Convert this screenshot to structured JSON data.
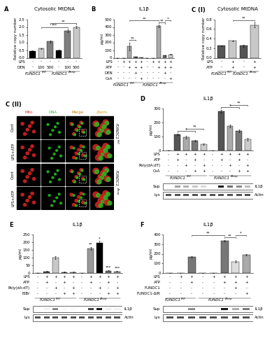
{
  "chart_data": [
    {
      "type": "bar",
      "panel": "A",
      "title": "Cytosolic MtDNA",
      "ylabel": "Relative copy number",
      "categories": [
        null,
        null,
        null,
        null,
        null,
        null
      ],
      "values": [
        0.45,
        0.6,
        1.05,
        0.5,
        1.75,
        2.0
      ],
      "errors": [
        0.03,
        0.03,
        0.05,
        0.03,
        0.08,
        0.08
      ],
      "colors": [
        "#000000",
        "#c8c8c8",
        "#7f7f7f",
        "#000000",
        "#7f7f7f",
        "#c8c8c8"
      ],
      "ylim": [
        0,
        2.5
      ],
      "yticks": [
        {
          "value": 0,
          "label": "0.0"
        },
        {
          "value": 0.5,
          "label": "0.5"
        },
        {
          "value": 1,
          "label": "1.0"
        },
        {
          "value": 1.5,
          "label": "1.5"
        },
        {
          "value": 2,
          "label": "2.0"
        },
        {
          "value": 2.5,
          "label": "2.5"
        }
      ],
      "tick_labels": "y",
      "conditions": [
        {
          "label": "LPS",
          "marks": [
            "-",
            "-",
            "-",
            "-",
            "-",
            "-"
          ]
        },
        {
          "label": "DEN",
          "marks": [
            "-",
            "100",
            "500",
            "-",
            "100",
            "500"
          ]
        }
      ],
      "groups": [
        {
          "gene": "FUNDC1",
          "sup": "fl/fl"
        },
        {
          "gene": "FUNDC1",
          "sup": "fl/fl"
        },
        {
          "gene": "FUNDC1",
          "sup": "fl/fl"
        },
        {
          "gene": "FUNDC1",
          "sup": "Δhep"
        },
        {
          "gene": "FUNDC1",
          "sup": "Δhep"
        },
        {
          "gene": "FUNDC1",
          "sup": "Δhep"
        }
      ],
      "significance": [
        {
          "from": 1,
          "to": 4,
          "label": "***"
        },
        {
          "from": 2,
          "to": 5,
          "label": "**"
        }
      ]
    },
    {
      "type": "bar",
      "panel": "B",
      "title": "IL1β",
      "ylabel": "pg/ml",
      "categories": [
        null,
        null,
        null,
        null,
        null,
        null,
        null,
        null,
        null,
        null
      ],
      "values": [
        0,
        0,
        150,
        10,
        5,
        0,
        0,
        410,
        30,
        45
      ],
      "errors": [
        0,
        0,
        50,
        3,
        2,
        0,
        0,
        15,
        5,
        8
      ],
      "colors": [
        "#000000",
        "#555555",
        "#aaaaaa",
        "#777777",
        "#cccccc",
        "#000000",
        "#555555",
        "#aaaaaa",
        "#777777",
        "#cccccc"
      ],
      "ylim": [
        0,
        500
      ],
      "yticks": [
        0,
        100,
        200,
        300,
        400,
        500
      ],
      "tick_labels": "y",
      "conditions": [
        {
          "label": "LPS",
          "marks": [
            "-",
            "+",
            "+",
            "+",
            "+",
            "-",
            "+",
            "+",
            "+",
            "+"
          ]
        },
        {
          "label": "ATP",
          "marks": [
            "-",
            "-",
            "+",
            "+",
            "+",
            "-",
            "-",
            "+",
            "+",
            "+"
          ]
        },
        {
          "label": "DEN",
          "marks": [
            "-",
            "-",
            "-",
            "+",
            "-",
            "-",
            "-",
            "-",
            "+",
            "-"
          ]
        },
        {
          "label": "CsA",
          "marks": [
            "-",
            "-",
            "-",
            "-",
            "+",
            "-",
            "-",
            "-",
            "-",
            "+"
          ]
        }
      ],
      "groups": [
        {
          "gene": "FUNDC1",
          "sup": "fl/fl"
        },
        {
          "gene": "FUNDC1",
          "sup": "fl/fl"
        },
        {
          "gene": "FUNDC1",
          "sup": "fl/fl"
        },
        {
          "gene": "FUNDC1",
          "sup": "fl/fl"
        },
        {
          "gene": "FUNDC1",
          "sup": "fl/fl"
        },
        {
          "gene": "FUNDC1",
          "sup": "Δhep"
        },
        {
          "gene": "FUNDC1",
          "sup": "Δhep"
        },
        {
          "gene": "FUNDC1",
          "sup": "Δhep"
        },
        {
          "gene": "FUNDC1",
          "sup": "Δhep"
        },
        {
          "gene": "FUNDC1",
          "sup": "Δhep"
        }
      ],
      "significance": [
        {
          "from": 2,
          "to": 3,
          "label": "**"
        },
        {
          "from": 7,
          "to": 8,
          "label": "**"
        },
        {
          "from": 8,
          "to": 9,
          "label": "*"
        },
        {
          "from": 2,
          "to": 7,
          "label": "**"
        }
      ]
    },
    {
      "type": "bar",
      "panel": "C (I)",
      "title": "Cytosolic MtDNA",
      "ylabel": "Relative copy number",
      "categories": [
        null,
        null,
        null,
        null
      ],
      "values": [
        0.25,
        0.35,
        0.25,
        0.68
      ],
      "errors": [
        0.01,
        0.01,
        0.02,
        0.05
      ],
      "colors": [
        "#555555",
        "#c8c8c8",
        "#555555",
        "#c8c8c8"
      ],
      "ylim": [
        0,
        0.8
      ],
      "yticks": [
        {
          "value": 0,
          "label": "0.0"
        },
        {
          "value": 0.2,
          "label": "0.2"
        },
        {
          "value": 0.4,
          "label": "0.4"
        },
        {
          "value": 0.6,
          "label": "0.6"
        },
        {
          "value": 0.8,
          "label": "0.8"
        }
      ],
      "tick_labels": "y",
      "conditions": [
        {
          "label": "LPS",
          "marks": [
            "-",
            "+",
            "-",
            "+"
          ]
        },
        {
          "label": "ATP",
          "marks": [
            "-",
            "+",
            "-",
            "+"
          ]
        }
      ],
      "groups": [
        {
          "gene": "FUNDC1",
          "sup": "fl/fl"
        },
        {
          "gene": "FUNDC1",
          "sup": "fl/fl"
        },
        {
          "gene": "FUNDC1",
          "sup": "Δhep"
        },
        {
          "gene": "FUNDC1",
          "sup": "Δhep"
        }
      ],
      "significance": [
        {
          "from": 1,
          "to": 3,
          "label": "**"
        }
      ]
    },
    {
      "type": "bar",
      "panel": "D",
      "title": "IL1β",
      "ylabel": "pg/ml",
      "categories": [
        null,
        null,
        null,
        null,
        null,
        null,
        null,
        null,
        null,
        null
      ],
      "values": [
        0,
        115,
        95,
        70,
        45,
        0,
        280,
        175,
        140,
        80
      ],
      "errors": [
        0,
        5,
        8,
        6,
        5,
        0,
        10,
        12,
        10,
        8
      ],
      "colors": [
        "#000000",
        "#555555",
        "#aaaaaa",
        "#777777",
        "#cccccc",
        "#000000",
        "#555555",
        "#aaaaaa",
        "#777777",
        "#cccccc"
      ],
      "ylim": [
        0,
        300
      ],
      "yticks": [
        0,
        100,
        200,
        300
      ],
      "tick_labels": "y",
      "conditions": [
        {
          "label": "LPS",
          "marks": [
            "-",
            "+",
            "+",
            "+",
            "+",
            "-",
            "+",
            "+",
            "+",
            "+"
          ]
        },
        {
          "label": "ATP",
          "marks": [
            "-",
            "+",
            "-",
            "+",
            "-",
            "-",
            "+",
            "-",
            "+",
            "-"
          ]
        },
        {
          "label": "Poly(dA:dT)",
          "marks": [
            "-",
            "-",
            "+",
            "-",
            "+",
            "-",
            "-",
            "+",
            "-",
            "+"
          ]
        },
        {
          "label": "CsA",
          "marks": [
            "-",
            "-",
            "-",
            "+",
            "+",
            "-",
            "-",
            "-",
            "+",
            "+"
          ]
        }
      ],
      "groups": [
        {
          "gene": "FUNDC1",
          "sup": "fl/fl"
        },
        {
          "gene": "FUNDC1",
          "sup": "fl/fl"
        },
        {
          "gene": "FUNDC1",
          "sup": "fl/fl"
        },
        {
          "gene": "FUNDC1",
          "sup": "fl/fl"
        },
        {
          "gene": "FUNDC1",
          "sup": "fl/fl"
        },
        {
          "gene": "FUNDC1",
          "sup": "Δhep"
        },
        {
          "gene": "FUNDC1",
          "sup": "Δhep"
        },
        {
          "gene": "FUNDC1",
          "sup": "Δhep"
        },
        {
          "gene": "FUNDC1",
          "sup": "Δhep"
        },
        {
          "gene": "FUNDC1",
          "sup": "Δhep"
        }
      ],
      "significance": [
        {
          "from": 1,
          "to": 3,
          "label": "*"
        },
        {
          "from": 2,
          "to": 4,
          "label": "**"
        },
        {
          "from": 6,
          "to": 8,
          "label": "*"
        },
        {
          "from": 7,
          "to": 9,
          "label": "**"
        }
      ],
      "blot": [
        {
          "fraction": "Sup",
          "protein": "IL1β"
        },
        {
          "fraction": "Lys",
          "protein": "Actin"
        }
      ]
    },
    {
      "type": "bar",
      "panel": "E",
      "title": "IL1β",
      "ylabel": "pg/ml",
      "categories": [
        null,
        null,
        null,
        null,
        null,
        null,
        null,
        null,
        null,
        null
      ],
      "values": [
        0,
        10,
        100,
        5,
        5,
        0,
        160,
        195,
        15,
        10
      ],
      "errors": [
        0,
        2,
        10,
        2,
        2,
        0,
        10,
        12,
        3,
        3
      ],
      "colors": [
        "#000000",
        "#555555",
        "#c8c8c8",
        "#777777",
        "#aaaaaa",
        "#000000",
        "#999999",
        "#000000",
        "#777777",
        "#aaaaaa"
      ],
      "ylim": [
        0,
        250
      ],
      "yticks": [
        0,
        50,
        100,
        150,
        200,
        250
      ],
      "tick_labels": "y",
      "conditions": [
        {
          "label": "LPS",
          "marks": [
            "-",
            "+",
            "+",
            "+",
            "+",
            "-",
            "+",
            "+",
            "+",
            "+"
          ]
        },
        {
          "label": "ATP",
          "marks": [
            "-",
            "+",
            "-",
            "+",
            "-",
            "-",
            "+",
            "-",
            "+",
            "-"
          ]
        },
        {
          "label": "Poly(dA:dT)",
          "marks": [
            "-",
            "-",
            "+",
            "-",
            "+",
            "-",
            "-",
            "+",
            "-",
            "+"
          ]
        },
        {
          "label": "EtBr",
          "marks": [
            "-",
            "-",
            "-",
            "+",
            "+",
            "-",
            "-",
            "-",
            "+",
            "+"
          ]
        }
      ],
      "groups": [
        {
          "gene": "FUNDC1",
          "sup": "fl/fl"
        },
        {
          "gene": "FUNDC1",
          "sup": "fl/fl"
        },
        {
          "gene": "FUNDC1",
          "sup": "fl/fl"
        },
        {
          "gene": "FUNDC1",
          "sup": "fl/fl"
        },
        {
          "gene": "FUNDC1",
          "sup": "fl/fl"
        },
        {
          "gene": "FUNDC1",
          "sup": "Δhep"
        },
        {
          "gene": "FUNDC1",
          "sup": "Δhep"
        },
        {
          "gene": "FUNDC1",
          "sup": "Δhep"
        },
        {
          "gene": "FUNDC1",
          "sup": "Δhep"
        },
        {
          "gene": "FUNDC1",
          "sup": "Δhep"
        }
      ],
      "star_labels": [
        {
          "index": 6,
          "label": "**"
        },
        {
          "index": 7,
          "label": "*"
        },
        {
          "index": 8,
          "label": "***"
        },
        {
          "index": 9,
          "label": "***"
        }
      ],
      "blot": [
        {
          "fraction": "Sup",
          "protein": "IL1β"
        },
        {
          "fraction": "Lys",
          "protein": "Actin"
        }
      ]
    },
    {
      "type": "bar",
      "panel": "F",
      "title": "IL1β",
      "ylabel": "pg/ml",
      "categories": [
        null,
        null,
        null,
        null,
        null,
        null,
        null,
        null
      ],
      "values": [
        0,
        0,
        165,
        0,
        0,
        335,
        120,
        190
      ],
      "errors": [
        0,
        0,
        8,
        0,
        0,
        10,
        8,
        10
      ],
      "colors": [
        "#000000",
        "#555555",
        "#777777",
        "#000000",
        "#555555",
        "#777777",
        "#dddddd",
        "#aaaaaa"
      ],
      "ylim": [
        0,
        400
      ],
      "yticks": [
        0,
        100,
        200,
        300,
        400
      ],
      "tick_labels": "y",
      "conditions": [
        {
          "label": "LPS",
          "marks": [
            "-",
            "+",
            "+",
            "-",
            "+",
            "+",
            "+",
            "+"
          ]
        },
        {
          "label": "ATP",
          "marks": [
            "-",
            "-",
            "+",
            "-",
            "-",
            "+",
            "+",
            "+"
          ]
        },
        {
          "label": "FUNDC1",
          "marks": [
            "-",
            "-",
            "-",
            "-",
            "-",
            "-",
            "+",
            "-"
          ]
        },
        {
          "label": "FUNDC1-ΔIR",
          "marks": [
            "-",
            "-",
            "-",
            "-",
            "-",
            "-",
            "-",
            "+"
          ]
        }
      ],
      "groups": [
        {
          "gene": "FUNDC1",
          "sup": "fl/fl"
        },
        {
          "gene": "FUNDC1",
          "sup": "fl/fl"
        },
        {
          "gene": "FUNDC1",
          "sup": "fl/fl"
        },
        {
          "gene": "FUNDC1",
          "sup": "Δhep"
        },
        {
          "gene": "FUNDC1",
          "sup": "Δhep"
        },
        {
          "gene": "FUNDC1",
          "sup": "Δhep"
        },
        {
          "gene": "FUNDC1",
          "sup": "Δhep"
        },
        {
          "gene": "FUNDC1",
          "sup": "Δhep"
        }
      ],
      "significance": [
        {
          "from": 5,
          "to": 6,
          "label": "**"
        },
        {
          "from": 6,
          "to": 7,
          "label": "*"
        },
        {
          "from": 2,
          "to": 5,
          "label": "**"
        }
      ],
      "blot": [
        {
          "fraction": "Sup",
          "protein": "IL1β"
        },
        {
          "fraction": "Lys",
          "protein": "Actin"
        }
      ]
    }
  ],
  "image_panel": {
    "panel": "C (II)",
    "columns": [
      "Mito",
      "DNA",
      "Merge",
      "Zoom"
    ],
    "rows": [
      "Cont",
      "LPS+ATP",
      "Cont",
      "LPS+ATP"
    ],
    "groups": [
      {
        "gene": "FUNDC1",
        "sup": "fl/fl"
      },
      {
        "gene": "FUNDC1",
        "sup": "fl/fl"
      },
      {
        "gene": "FUNDC1",
        "sup": "Δhep"
      },
      {
        "gene": "FUNDC1",
        "sup": "Δhep"
      }
    ]
  }
}
